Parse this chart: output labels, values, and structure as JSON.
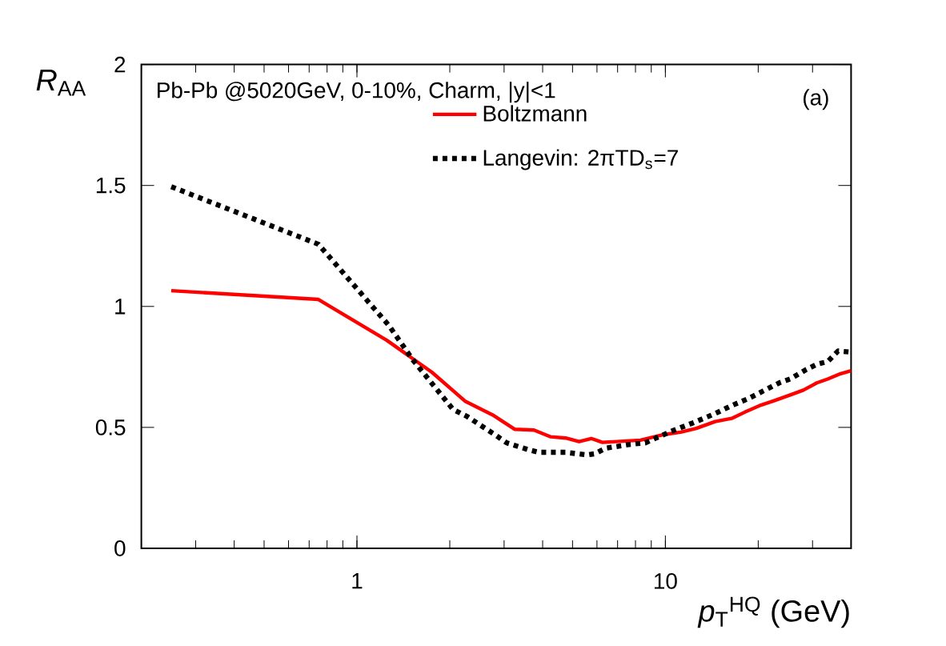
{
  "chart_data": {
    "type": "line",
    "xlabel": "*p*$_{T}$$^{HQ}$ (GeV)",
    "ylabel": "*R*$_{AA}$",
    "log": "x",
    "xlim": [
      0.2,
      40
    ],
    "xticks": [
      1,
      10
    ],
    "ylim": [
      0,
      2
    ],
    "yticks": [
      0,
      0.5,
      1,
      1.5,
      2
    ],
    "legend": "top right",
    "annotations": [
      "Pb-Pb @5020GeV, 0-10%, Charm, |y|<1",
      "(a)"
    ],
    "series": [
      {
        "name": "Boltzmann",
        "color": "#ff0000",
        "line_style": "solid",
        "x": [
          0.25,
          0.75,
          1.25,
          1.75,
          2.25,
          2.75,
          3.25,
          3.75,
          4.25,
          4.75,
          5.25,
          5.75,
          6.25,
          8.3,
          9.75,
          11.2,
          12.6,
          14.5,
          16.4,
          18.1,
          20.4,
          22.5,
          25.4,
          28,
          31,
          33.6,
          37,
          40
        ],
        "values": [
          1.065,
          1.029,
          0.86,
          0.728,
          0.607,
          0.552,
          0.492,
          0.489,
          0.461,
          0.456,
          0.441,
          0.454,
          0.438,
          0.447,
          0.469,
          0.48,
          0.496,
          0.524,
          0.537,
          0.563,
          0.592,
          0.61,
          0.634,
          0.654,
          0.684,
          0.7,
          0.722,
          0.734
        ]
      },
      {
        "name": "Langevin: 2πTD$_{s}$=7",
        "color": "#000000",
        "line_style": "dotted",
        "x": [
          0.25,
          0.75,
          1.27,
          1.52,
          2.05,
          2.27,
          2.77,
          3.06,
          3.59,
          3.89,
          4.75,
          5.57,
          5.9,
          6.41,
          7.7,
          8.6,
          10.5,
          12.3,
          14.5,
          16.4,
          18.5,
          20.8,
          23.4,
          25.4,
          28.6,
          31,
          33.6,
          36.3,
          40
        ],
        "values": [
          1.495,
          1.257,
          0.921,
          0.778,
          0.574,
          0.546,
          0.474,
          0.436,
          0.408,
          0.397,
          0.397,
          0.386,
          0.391,
          0.414,
          0.43,
          0.436,
          0.485,
          0.519,
          0.557,
          0.59,
          0.618,
          0.651,
          0.684,
          0.7,
          0.739,
          0.761,
          0.772,
          0.816,
          0.811
        ]
      }
    ]
  }
}
